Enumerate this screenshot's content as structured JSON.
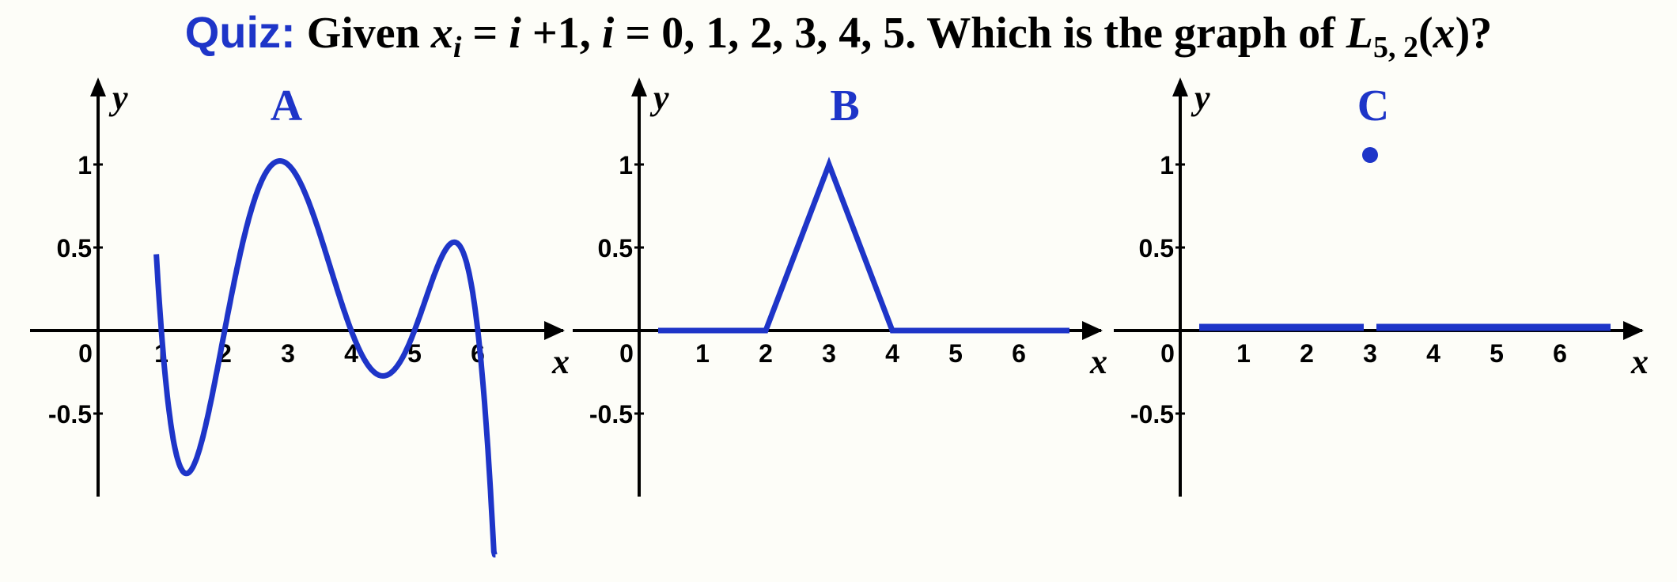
{
  "title": {
    "quiz_label": "Quiz:",
    "given": "Given",
    "x": "x",
    "i_sub": "i",
    "eq1": " = ",
    "i1": "i",
    "plus_one": " +1, ",
    "i2": "i",
    "values": " = 0, 1, 2, 3, 4, 5.  Which is the graph of ",
    "L": "L",
    "L_sub": "5, 2",
    "open_paren": "(",
    "x2": "x",
    "close_q": ")?"
  },
  "colors": {
    "accent": "#1e35c8",
    "text": "#000000",
    "background": "#fdfdf8"
  },
  "chart_data": [
    {
      "type": "line",
      "label": "A",
      "xlabel": "x",
      "ylabel": "y",
      "x_ticks": [
        "0",
        "1",
        "2",
        "3",
        "4",
        "5",
        "6"
      ],
      "y_ticks": [
        "1",
        "0.5",
        "-0.5"
      ],
      "xlim": [
        -0.1,
        7.3
      ],
      "ylim": [
        -1.3,
        1.3
      ],
      "series": [
        {
          "x": [
            1,
            2,
            3,
            4,
            5,
            6
          ],
          "y": [
            0,
            0,
            1,
            0,
            0,
            0
          ]
        }
      ]
    },
    {
      "type": "line",
      "label": "B",
      "xlabel": "x",
      "ylabel": "y",
      "x_ticks": [
        "1",
        "2",
        "3",
        "4",
        "5",
        "6"
      ],
      "y_ticks": [
        "1",
        "0.5",
        "-0.5"
      ],
      "xlim": [
        -0.1,
        7.3
      ],
      "ylim": [
        -1.3,
        1.3
      ],
      "series": [
        {
          "x": [
            0.3,
            2,
            3,
            4,
            6.8
          ],
          "y": [
            0,
            0,
            1,
            0,
            0
          ]
        }
      ]
    },
    {
      "type": "scatter",
      "label": "C",
      "xlabel": "x",
      "ylabel": "y",
      "x_ticks": [
        "1",
        "2",
        "3",
        "4",
        "5",
        "6"
      ],
      "y_ticks": [
        "1",
        "0.5",
        "-0.5"
      ],
      "xlim": [
        -0.1,
        7.3
      ],
      "ylim": [
        -1.3,
        1.3
      ],
      "segments": [
        {
          "x": [
            0.3,
            2.9
          ],
          "y": [
            0,
            0
          ]
        },
        {
          "x": [
            3.1,
            6.8
          ],
          "y": [
            0,
            0
          ]
        }
      ],
      "points": [
        {
          "x": 3,
          "y": 1
        }
      ]
    }
  ]
}
